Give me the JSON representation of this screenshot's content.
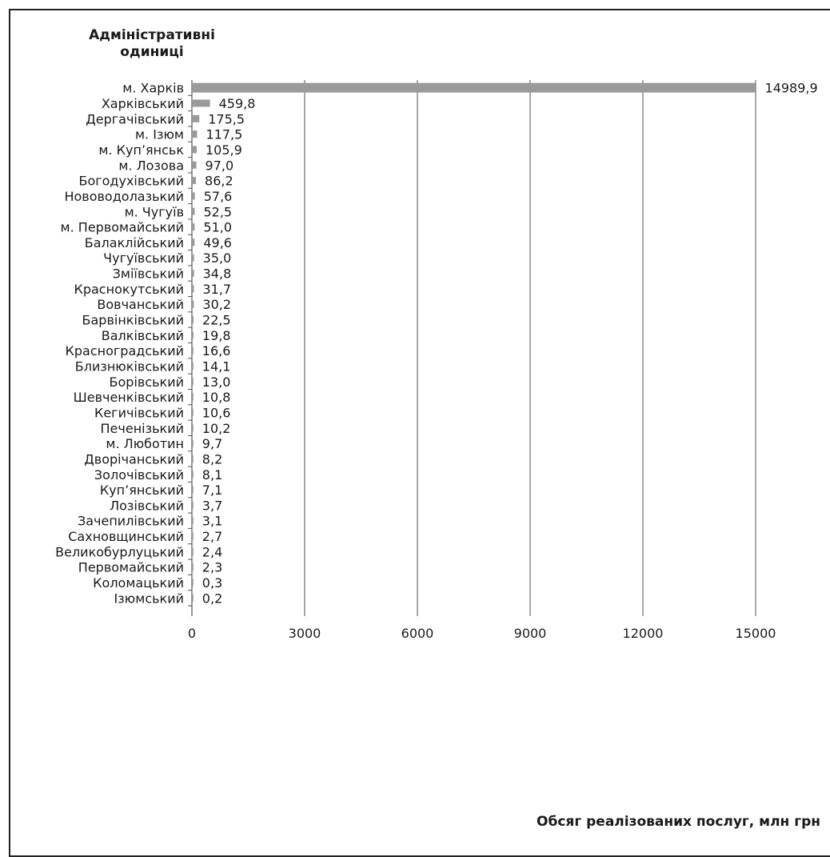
{
  "chart_data": {
    "type": "bar",
    "orientation": "horizontal",
    "ylabel": "Адміністративні одиниці",
    "xlabel": "Обсяг реалізованих послуг, млн грн",
    "xlim": [
      0,
      15000
    ],
    "xticks": [
      "0",
      "3000",
      "6000",
      "9000",
      "12000",
      "15000"
    ],
    "grid": "vertical",
    "bar_color": "#9a9a9a",
    "categories": [
      "м. Харків",
      "Харківський",
      "Дергачівський",
      "м. Ізюм",
      "м. Куп’янськ",
      "м. Лозова",
      "Богодухівський",
      "Нововодолазький",
      "м. Чугуїв",
      "м. Первомайський",
      "Балаклійський",
      "Чугуївський",
      "Зміївський",
      "Краснокутський",
      "Вовчанський",
      "Барвінківський",
      "Валківський",
      "Красноградський",
      "Близнюківський",
      "Борівський",
      "Шевченківський",
      "Кегичівський",
      "Печенізький",
      "м. Люботин",
      "Дворічанський",
      "Золочівський",
      "Куп’янський",
      "Лозівський",
      "Зачепилівський",
      "Сахновщинський",
      "Великобурлуцький",
      "Первомайський",
      "Коломацький",
      "Ізюмський"
    ],
    "values": [
      14989.9,
      459.8,
      175.5,
      117.5,
      105.9,
      97.0,
      86.2,
      57.6,
      52.5,
      51.0,
      49.6,
      35.0,
      34.8,
      31.7,
      30.2,
      22.5,
      19.8,
      16.6,
      14.1,
      13.0,
      10.8,
      10.6,
      10.2,
      9.7,
      8.2,
      8.1,
      7.1,
      3.7,
      3.1,
      2.7,
      2.4,
      2.3,
      0.3,
      0.2
    ],
    "value_labels": [
      "14989,9",
      "459,8",
      "175,5",
      "117,5",
      "105,9",
      "97,0",
      "86,2",
      "57,6",
      "52,5",
      "51,0",
      "49,6",
      "35,0",
      "34,8",
      "31,7",
      "30,2",
      "22,5",
      "19,8",
      "16,6",
      "14,1",
      "13,0",
      "10,8",
      "10,6",
      "10,2",
      "9,7",
      "8,2",
      "8,1",
      "7,1",
      "3,7",
      "3,1",
      "2,7",
      "2,4",
      "2,3",
      "0,3",
      "0,2"
    ]
  }
}
